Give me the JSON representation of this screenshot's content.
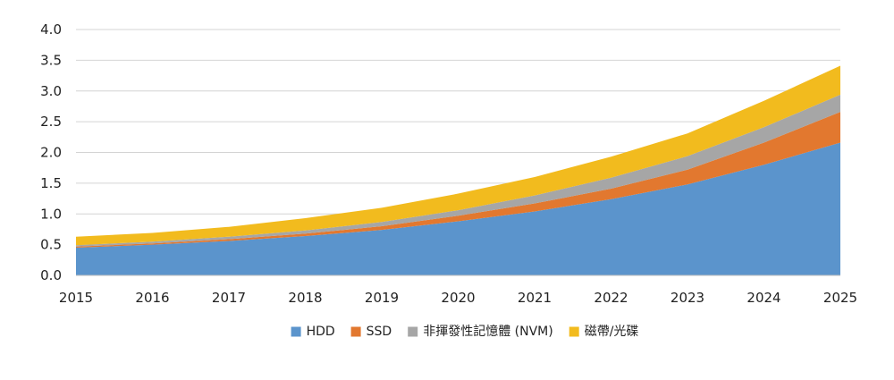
{
  "chart_data": {
    "type": "area",
    "stacked": true,
    "x": [
      2015,
      2016,
      2017,
      2018,
      2019,
      2020,
      2021,
      2022,
      2023,
      2024,
      2025
    ],
    "x_tick_labels": [
      "2015",
      "2016",
      "2017",
      "2018",
      "2019",
      "2020",
      "2021",
      "2022",
      "2023",
      "2024",
      "2025"
    ],
    "y_tick_labels": [
      "0.0",
      "0.5",
      "1.0",
      "1.5",
      "2.0",
      "2.5",
      "3.0",
      "3.5",
      "4.0"
    ],
    "ylim": [
      0,
      4.0
    ],
    "grid": "horizontal",
    "legend_position": "bottom",
    "series": [
      {
        "name": "HDD",
        "color": "#5B94CC",
        "values": [
          0.45,
          0.5,
          0.56,
          0.64,
          0.74,
          0.88,
          1.04,
          1.24,
          1.48,
          1.8,
          2.16
        ]
      },
      {
        "name": "SSD",
        "color": "#E2782F",
        "values": [
          0.02,
          0.02,
          0.03,
          0.04,
          0.06,
          0.09,
          0.13,
          0.17,
          0.24,
          0.36,
          0.5
        ]
      },
      {
        "name": "非揮發性記憶體 (NVM)",
        "color": "#A6A6A6",
        "values": [
          0.02,
          0.03,
          0.04,
          0.05,
          0.07,
          0.09,
          0.13,
          0.18,
          0.22,
          0.25,
          0.28
        ]
      },
      {
        "name": "磁帶/光碟",
        "color": "#F2BB1E",
        "values": [
          0.14,
          0.14,
          0.16,
          0.2,
          0.23,
          0.27,
          0.3,
          0.34,
          0.37,
          0.43,
          0.47
        ]
      }
    ]
  }
}
